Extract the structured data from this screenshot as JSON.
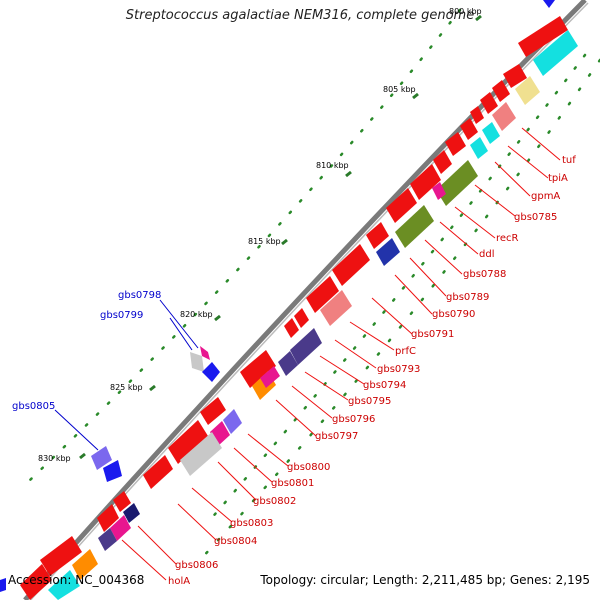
{
  "title": "Streptococcus agalactiae NEM316, complete genome",
  "footer": {
    "accession": "Accession: NC_004368",
    "topology": "Topology: circular; Length: 2,211,485 bp; Genes: 2,195"
  },
  "ticks": [
    "800 kbp",
    "805 kbp",
    "810 kbp",
    "815 kbp",
    "820 kbp",
    "825 kbp",
    "830 kbp"
  ],
  "inner_labels": [
    "tuf",
    "tpiA",
    "gpmA",
    "gbs0785",
    "recR",
    "ddl",
    "gbs0788",
    "gbs0789",
    "gbs0790",
    "gbs0791",
    "prfC",
    "gbs0793",
    "gbs0794",
    "gbs0795",
    "gbs0796",
    "gbs0797",
    "gbs0800",
    "gbs0801",
    "gbs0802",
    "gbs0803",
    "gbs0804",
    "gbs0806",
    "holA"
  ],
  "outer_labels": [
    "gbs0798",
    "gbs0799",
    "gbs0805"
  ],
  "colors": {
    "backbone": "#777777",
    "cds": "#ee1111",
    "inner_label": "#cc0000",
    "outer_label": "#0000cc",
    "tick_mark": "#2a7a2a",
    "dot": "#2a8a2a"
  }
}
